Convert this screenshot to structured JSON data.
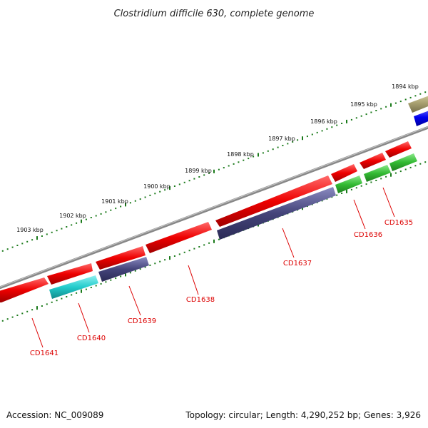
{
  "title": "Clostridium difficile 630, complete genome",
  "footer": {
    "accession": "Accession: NC_009089",
    "summary": "Topology: circular; Length: 4,290,252 bp; Genes: 3,926"
  },
  "scale": {
    "unit": "kbp",
    "labels": [
      "1894 kbp",
      "1895 kbp",
      "1896 kbp",
      "1897 kbp",
      "1898 kbp",
      "1899 kbp",
      "1900 kbp",
      "1901 kbp",
      "1902 kbp",
      "1903 kbp"
    ]
  },
  "colors": {
    "backbone": "#888888",
    "tick": "#1a7a1a",
    "red": "#ee0000",
    "cyan": "#22cccc",
    "purple": "#44447a",
    "green": "#33bb33",
    "blue": "#0000ee",
    "olive": "#a8a070",
    "label": "#dd0000"
  },
  "gene_labels": [
    "CD1635",
    "CD1636",
    "CD1637",
    "CD1638",
    "CD1639",
    "CD1640",
    "CD1641"
  ]
}
